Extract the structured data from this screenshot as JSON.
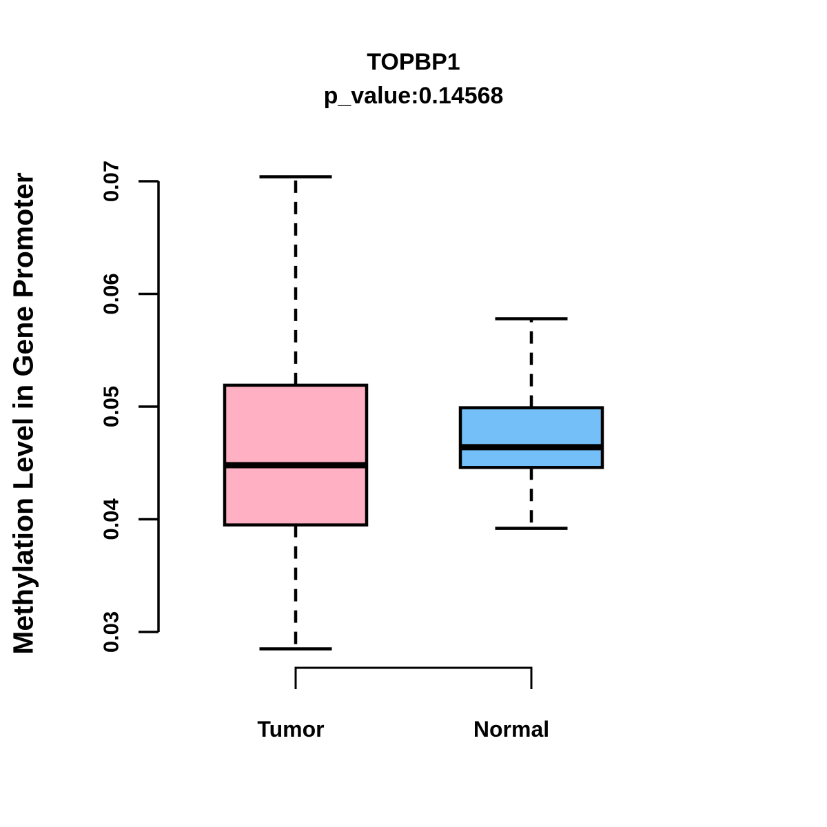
{
  "title": "TOPBP1",
  "subtitle": "p_value:0.14568",
  "y_axis": {
    "label": "Methylation Level in Gene Promoter",
    "ticks": [
      "0.03",
      "0.04",
      "0.05",
      "0.06",
      "0.07"
    ],
    "tick_values": [
      0.03,
      0.04,
      0.05,
      0.06,
      0.07
    ]
  },
  "x_axis": {
    "categories": [
      "Tumor",
      "Normal"
    ]
  },
  "chart_data": {
    "type": "boxplot",
    "title": "TOPBP1",
    "subtitle": "p_value:0.14568",
    "p_value": 0.14568,
    "gene": "TOPBP1",
    "xlabel": "",
    "ylabel": "Methylation Level in Gene Promoter",
    "ylim": [
      0.03,
      0.07
    ],
    "yticks": [
      0.03,
      0.04,
      0.05,
      0.06,
      0.07
    ],
    "categories": [
      "Tumor",
      "Normal"
    ],
    "grid": false,
    "legend": "none",
    "groups": [
      {
        "label": "Tumor",
        "color": "#FFB0C3",
        "whisker_low": 0.0285,
        "q1": 0.0395,
        "median": 0.0448,
        "q3": 0.0519,
        "whisker_high": 0.0704
      },
      {
        "label": "Normal",
        "color": "#74BFF7",
        "whisker_low": 0.0392,
        "q1": 0.0446,
        "median": 0.0464,
        "q3": 0.0499,
        "whisker_high": 0.0578
      }
    ],
    "comparison_bracket": {
      "from": "Tumor",
      "to": "Normal"
    }
  },
  "colors": {
    "tumor_fill": "#FFB0C3",
    "normal_fill": "#74BFF7",
    "line": "#000000",
    "background": "#FFFFFF"
  }
}
